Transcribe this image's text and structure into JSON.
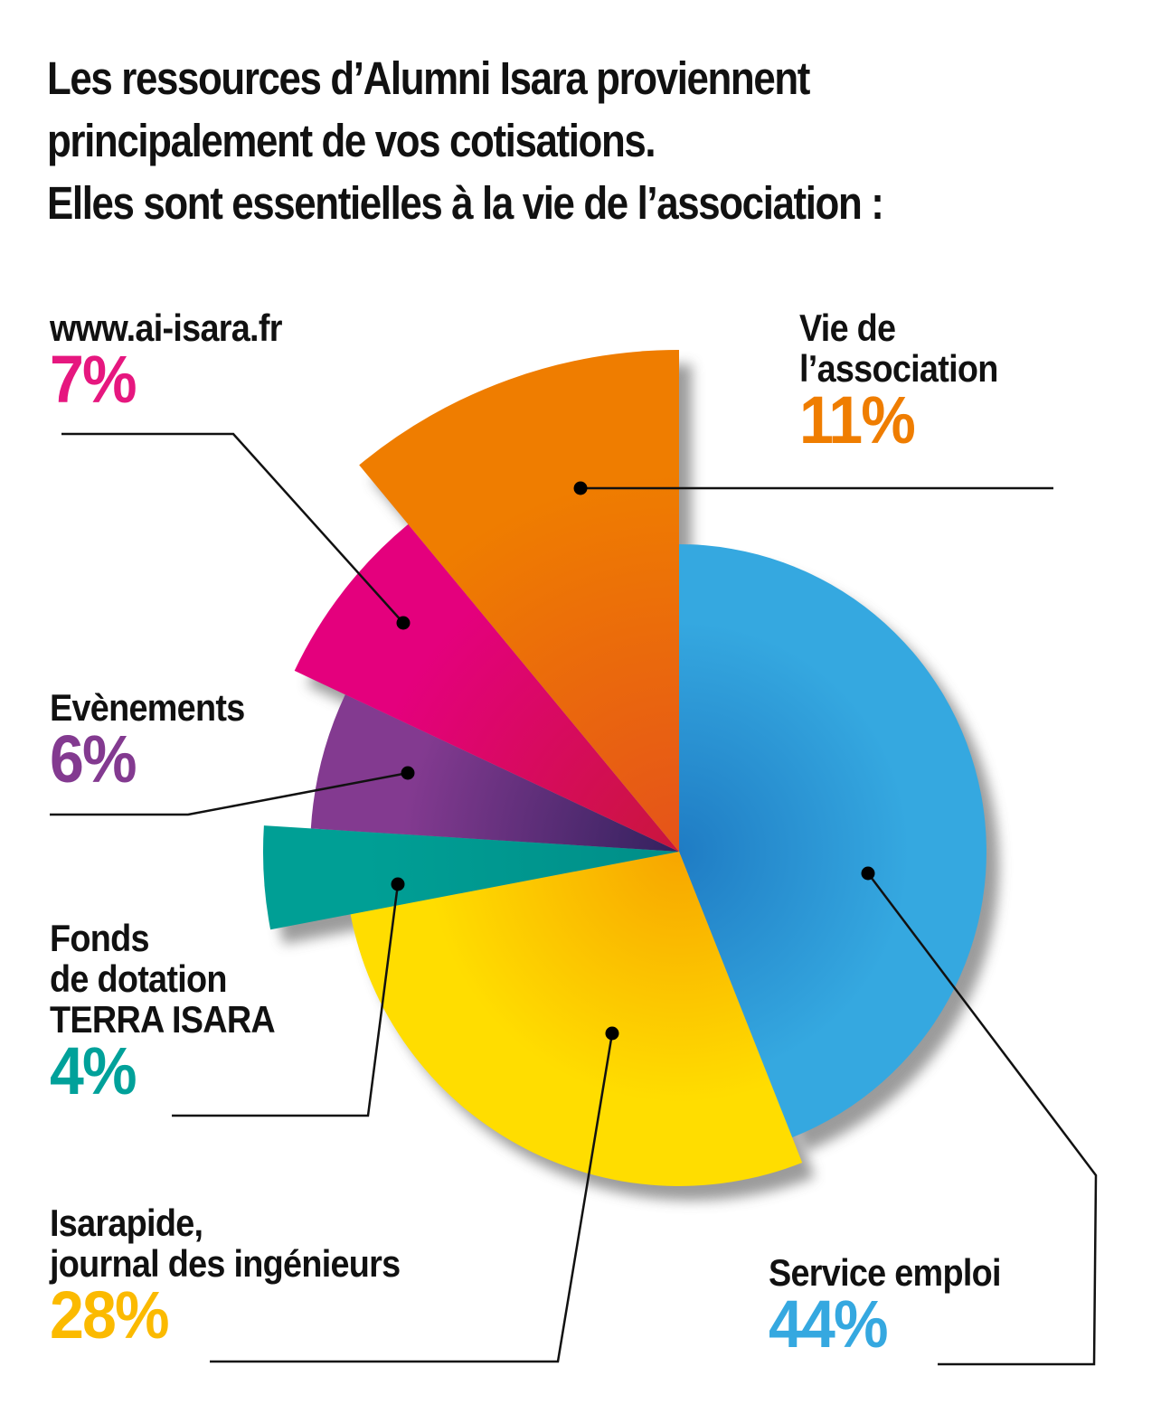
{
  "title": {
    "lines": [
      "Les ressources d’Alumni Isara proviennent",
      "principalement de vos cotisations.",
      "Elles sont essentielles à la vie de l’association :"
    ]
  },
  "chart_data": {
    "type": "pie",
    "title": "Les ressources d’Alumni Isara proviennent principalement de vos cotisations. Elles sont essentielles à la vie de l’association :",
    "unit": "%",
    "exploded_style": true,
    "slices": [
      {
        "key": "service_emploi",
        "label": "Service emploi",
        "value": 44,
        "pct_label": "44%",
        "color": "#35a8e0",
        "color_inner": "#1f7cc4"
      },
      {
        "key": "isarapide",
        "label": "Isarapide, journal des ingénieurs",
        "label_lines": [
          "Isarapide,",
          "journal des ingénieurs"
        ],
        "value": 28,
        "pct_label": "28%",
        "color": "#ffdd00",
        "color_inner": "#f7a600"
      },
      {
        "key": "fonds",
        "label": "Fonds de dotation TERRA ISARA",
        "label_lines": [
          "Fonds",
          "de dotation",
          "TERRA ISARA"
        ],
        "value": 4,
        "pct_label": "4%",
        "color": "#009f95",
        "color_inner": "#008e88"
      },
      {
        "key": "evenements",
        "label": "Evènements",
        "value": 6,
        "pct_label": "6%",
        "color": "#833a90",
        "color_inner": "#33215e"
      },
      {
        "key": "site",
        "label": "www.ai-isara.fr",
        "value": 7,
        "pct_label": "7%",
        "color": "#e4007d",
        "color_inner": "#c9163c"
      },
      {
        "key": "vie",
        "label": "Vie de l’association",
        "label_lines": [
          "Vie de",
          "l’association"
        ],
        "value": 11,
        "pct_label": "11%",
        "color": "#ef7d00",
        "color_inner": "#e5531a"
      }
    ],
    "legend": "labels around chart with leader lines"
  },
  "labels": {
    "site": {
      "name_lines": [
        "www.ai-isara.fr"
      ],
      "pct": "7%",
      "color": "#e6177f"
    },
    "vie": {
      "name_lines": [
        "Vie de",
        "l’association"
      ],
      "pct": "11%",
      "color": "#ef7d00"
    },
    "evenements": {
      "name_lines": [
        "Evènements"
      ],
      "pct": "6%",
      "color": "#833a90"
    },
    "fonds": {
      "name_lines": [
        "Fonds",
        "de dotation",
        "TERRA ISARA"
      ],
      "pct": "4%",
      "color": "#00a19a"
    },
    "isarapide": {
      "name_lines": [
        "Isarapide,",
        "journal des ingénieurs"
      ],
      "pct": "28%",
      "color": "#fbba00"
    },
    "service_emploi": {
      "name_lines": [
        "Service emploi"
      ],
      "pct": "44%",
      "color": "#35a8e0"
    }
  }
}
